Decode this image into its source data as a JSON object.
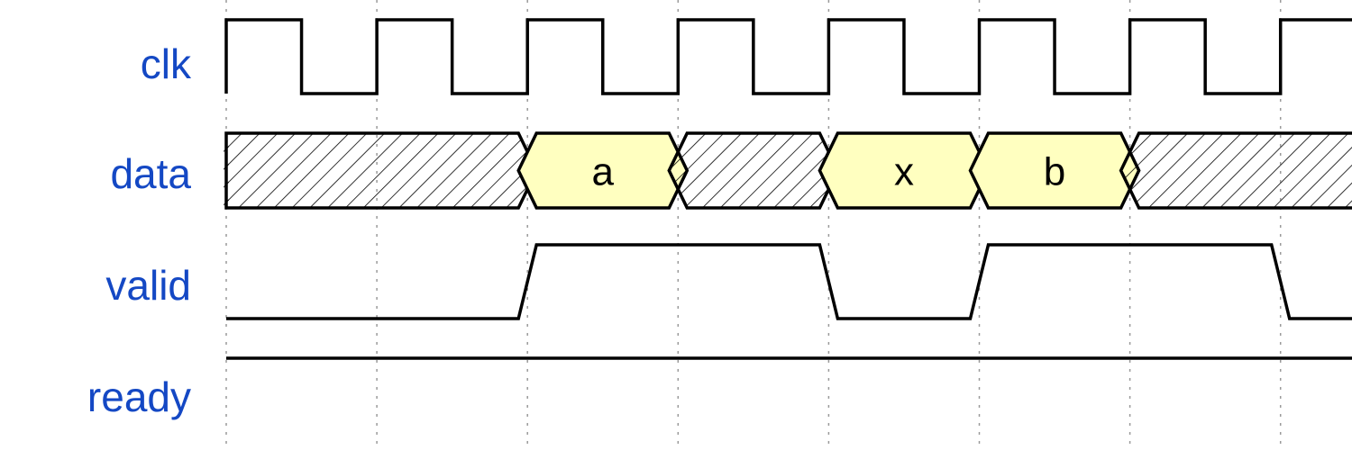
{
  "signals": [
    {
      "name": "clk",
      "wave": "P......."
    },
    {
      "name": "data",
      "wave": "x.3x33x.",
      "values": [
        "a",
        "x",
        "b"
      ]
    },
    {
      "name": "valid",
      "wave": "0.1.01.0"
    },
    {
      "name": "ready",
      "wave": "1......."
    }
  ],
  "colors": {
    "label": "#1448c4",
    "value_fill": "#ffffc0",
    "wire": "#000000",
    "grid": "#9a9a9a"
  }
}
